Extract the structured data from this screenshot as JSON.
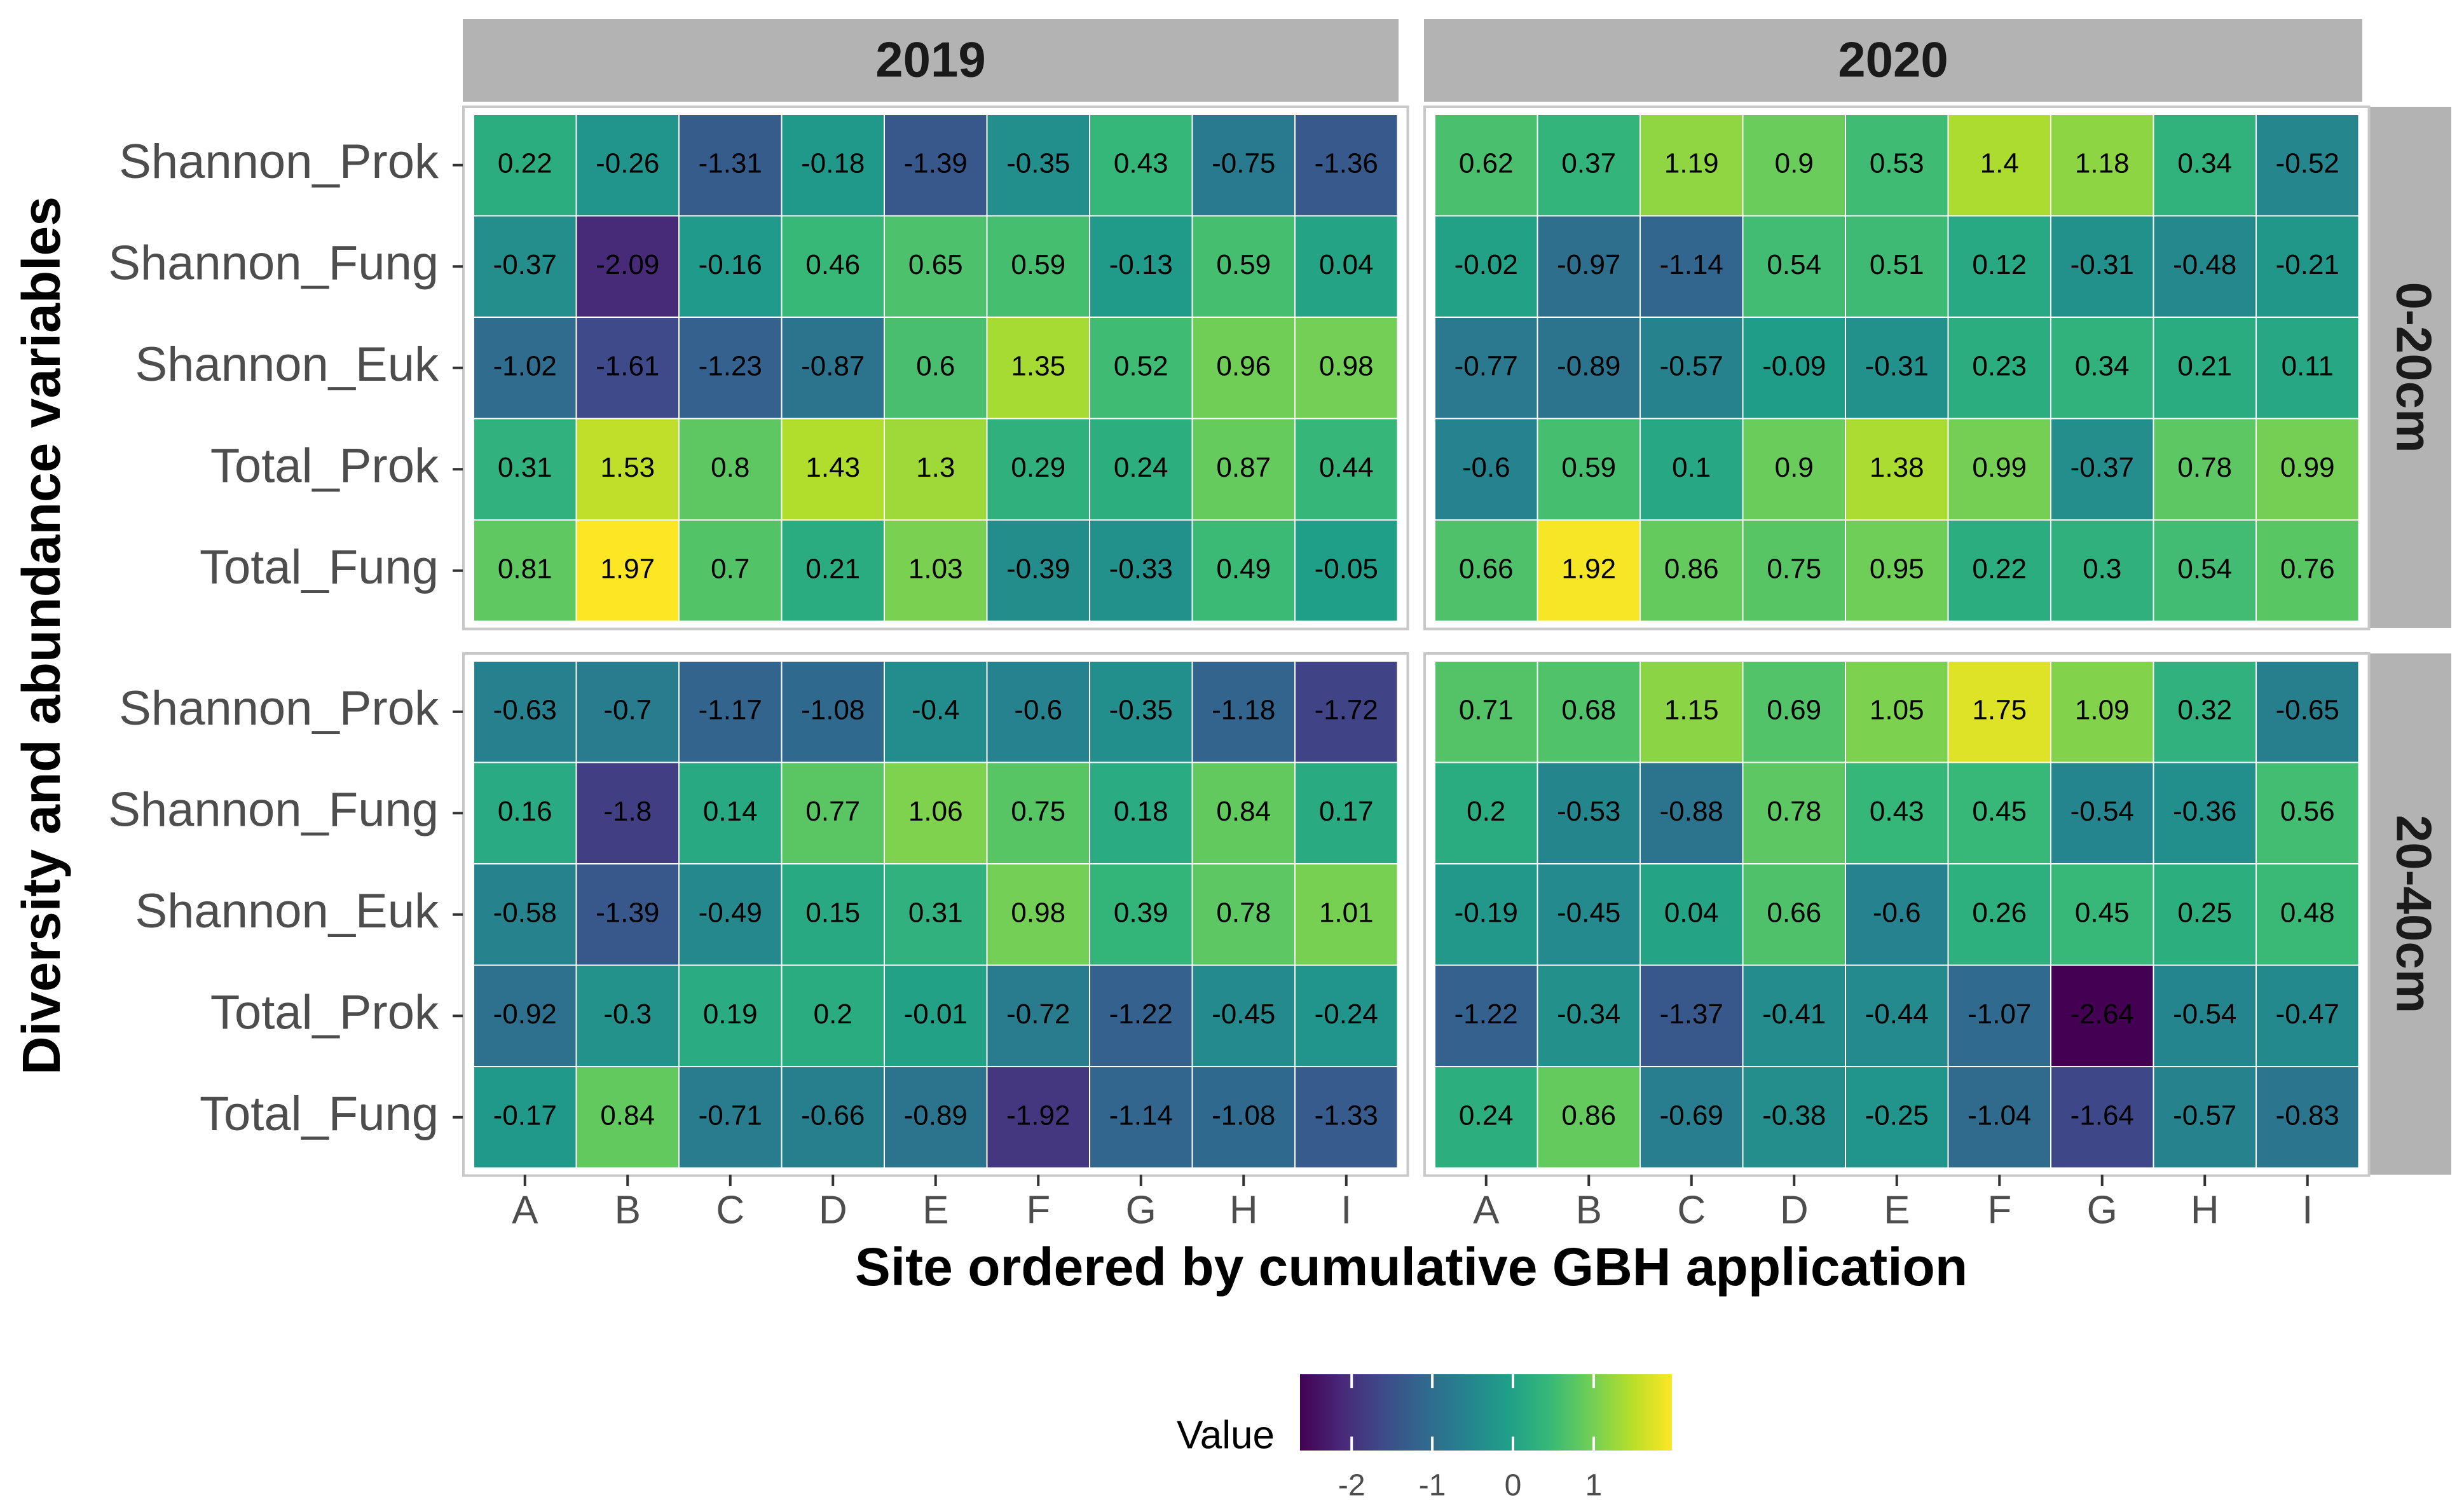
{
  "chart_data": {
    "type": "heatmap",
    "title": "",
    "xlabel": "Site ordered by cumulative GBH application",
    "ylabel": "Diversity and abundance variables",
    "x_categories": [
      "A",
      "B",
      "C",
      "D",
      "E",
      "F",
      "G",
      "H",
      "I"
    ],
    "y_categories": [
      "Shannon_Prok",
      "Shannon_Fung",
      "Shannon_Euk",
      "Total_Prok",
      "Total_Fung"
    ],
    "facet_columns": [
      "2019",
      "2020"
    ],
    "facet_rows": [
      "0-20cm",
      "20-40cm"
    ],
    "legend": {
      "title": "Value",
      "position": "bottom",
      "range": [
        -2.64,
        1.97
      ],
      "ticks": [
        -2,
        -1,
        0,
        1
      ],
      "tick_labels": [
        "-2",
        "-1",
        "0",
        "1"
      ],
      "colormap": "viridis",
      "colors": [
        "#440154",
        "#482878",
        "#3e4a89",
        "#31688e",
        "#26828e",
        "#1f9e89",
        "#35b779",
        "#6ece58",
        "#b5de2b",
        "#fde725"
      ]
    },
    "panels": [
      {
        "year": "2019",
        "depth": "0-20cm",
        "values": [
          [
            0.22,
            -0.26,
            -1.31,
            -0.18,
            -1.39,
            -0.35,
            0.43,
            -0.75,
            -1.36
          ],
          [
            -0.37,
            -2.09,
            -0.16,
            0.46,
            0.65,
            0.59,
            -0.13,
            0.59,
            0.04
          ],
          [
            -1.02,
            -1.61,
            -1.23,
            -0.87,
            0.6,
            1.35,
            0.52,
            0.96,
            0.98
          ],
          [
            0.31,
            1.53,
            0.8,
            1.43,
            1.3,
            0.29,
            0.24,
            0.87,
            0.44
          ],
          [
            0.81,
            1.97,
            0.7,
            0.21,
            1.03,
            -0.39,
            -0.33,
            0.49,
            -0.05
          ]
        ],
        "labels": [
          [
            "0.22",
            "-0.26",
            "-1.31",
            "-0.18",
            "-1.39",
            "-0.35",
            "0.43",
            "-0.75",
            "-1.36"
          ],
          [
            "-0.37",
            "-2.09",
            "-0.16",
            "0.46",
            "0.65",
            "0.59",
            "-0.13",
            "0.59",
            "0.04"
          ],
          [
            "-1.02",
            "-1.61",
            "-1.23",
            "-0.87",
            "0.6",
            "1.35",
            "0.52",
            "0.96",
            "0.98"
          ],
          [
            "0.31",
            "1.53",
            "0.8",
            "1.43",
            "1.3",
            "0.29",
            "0.24",
            "0.87",
            "0.44"
          ],
          [
            "0.81",
            "1.97",
            "0.7",
            "0.21",
            "1.03",
            "-0.39",
            "-0.33",
            "0.49",
            "-0.05"
          ]
        ]
      },
      {
        "year": "2020",
        "depth": "0-20cm",
        "values": [
          [
            0.62,
            0.37,
            1.19,
            0.9,
            0.53,
            1.4,
            1.18,
            0.34,
            -0.52
          ],
          [
            -0.02,
            -0.97,
            -1.14,
            0.54,
            0.51,
            0.12,
            -0.31,
            -0.48,
            -0.21
          ],
          [
            -0.77,
            -0.89,
            -0.57,
            -0.09,
            -0.31,
            0.23,
            0.34,
            0.21,
            0.11
          ],
          [
            -0.6,
            0.59,
            0.1,
            0.9,
            1.38,
            0.99,
            -0.37,
            0.78,
            0.99
          ],
          [
            0.66,
            1.92,
            0.86,
            0.75,
            0.95,
            0.22,
            0.3,
            0.54,
            0.76
          ]
        ],
        "labels": [
          [
            "0.62",
            "0.37",
            "1.19",
            "0.9",
            "0.53",
            "1.4",
            "1.18",
            "0.34",
            "-0.52"
          ],
          [
            "-0.02",
            "-0.97",
            "-1.14",
            "0.54",
            "0.51",
            "0.12",
            "-0.31",
            "-0.48",
            "-0.21"
          ],
          [
            "-0.77",
            "-0.89",
            "-0.57",
            "-0.09",
            "-0.31",
            "0.23",
            "0.34",
            "0.21",
            "0.11"
          ],
          [
            "-0.6",
            "0.59",
            "0.1",
            "0.9",
            "1.38",
            "0.99",
            "-0.37",
            "0.78",
            "0.99"
          ],
          [
            "0.66",
            "1.92",
            "0.86",
            "0.75",
            "0.95",
            "0.22",
            "0.3",
            "0.54",
            "0.76"
          ]
        ]
      },
      {
        "year": "2019",
        "depth": "20-40cm",
        "values": [
          [
            -0.63,
            -0.7,
            -1.17,
            -1.08,
            -0.4,
            -0.6,
            -0.35,
            -1.18,
            -1.72
          ],
          [
            0.16,
            -1.8,
            0.14,
            0.77,
            1.06,
            0.75,
            0.18,
            0.84,
            0.17
          ],
          [
            -0.58,
            -1.39,
            -0.49,
            0.15,
            0.31,
            0.98,
            0.39,
            0.78,
            1.01
          ],
          [
            -0.92,
            -0.3,
            0.19,
            0.2,
            -0.01,
            -0.72,
            -1.22,
            -0.45,
            -0.24
          ],
          [
            -0.17,
            0.84,
            -0.71,
            -0.66,
            -0.89,
            -1.92,
            -1.14,
            -1.08,
            -1.33
          ]
        ],
        "labels": [
          [
            "-0.63",
            "-0.7",
            "-1.17",
            "-1.08",
            "-0.4",
            "-0.6",
            "-0.35",
            "-1.18",
            "-1.72"
          ],
          [
            "0.16",
            "-1.8",
            "0.14",
            "0.77",
            "1.06",
            "0.75",
            "0.18",
            "0.84",
            "0.17"
          ],
          [
            "-0.58",
            "-1.39",
            "-0.49",
            "0.15",
            "0.31",
            "0.98",
            "0.39",
            "0.78",
            "1.01"
          ],
          [
            "-0.92",
            "-0.3",
            "0.19",
            "0.2",
            "-0.01",
            "-0.72",
            "-1.22",
            "-0.45",
            "-0.24"
          ],
          [
            "-0.17",
            "0.84",
            "-0.71",
            "-0.66",
            "-0.89",
            "-1.92",
            "-1.14",
            "-1.08",
            "-1.33"
          ]
        ]
      },
      {
        "year": "2020",
        "depth": "20-40cm",
        "values": [
          [
            0.71,
            0.68,
            1.15,
            0.69,
            1.05,
            1.75,
            1.09,
            0.32,
            -0.65
          ],
          [
            0.2,
            -0.53,
            -0.88,
            0.78,
            0.43,
            0.45,
            -0.54,
            -0.36,
            0.56
          ],
          [
            -0.19,
            -0.45,
            0.04,
            0.66,
            -0.6,
            0.26,
            0.45,
            0.25,
            0.48
          ],
          [
            -1.22,
            -0.34,
            -1.37,
            -0.41,
            -0.44,
            -1.07,
            -2.64,
            -0.54,
            -0.47
          ],
          [
            0.24,
            0.86,
            -0.69,
            -0.38,
            -0.25,
            -1.04,
            -1.64,
            -0.57,
            -0.83
          ]
        ],
        "labels": [
          [
            "0.71",
            "0.68",
            "1.15",
            "0.69",
            "1.05",
            "1.75",
            "1.09",
            "0.32",
            "-0.65"
          ],
          [
            "0.2",
            "-0.53",
            "-0.88",
            "0.78",
            "0.43",
            "0.45",
            "-0.54",
            "-0.36",
            "0.56"
          ],
          [
            "-0.19",
            "-0.45",
            "0.04",
            "0.66",
            "-0.6",
            "0.26",
            "0.45",
            "0.25",
            "0.48"
          ],
          [
            "-1.22",
            "-0.34",
            "-1.37",
            "-0.41",
            "-0.44",
            "-1.07",
            "-2.64",
            "-0.54",
            "-0.47"
          ],
          [
            "0.24",
            "0.86",
            "-0.69",
            "-0.38",
            "-0.25",
            "-1.04",
            "-1.64",
            "-0.57",
            "-0.83"
          ]
        ]
      }
    ]
  }
}
